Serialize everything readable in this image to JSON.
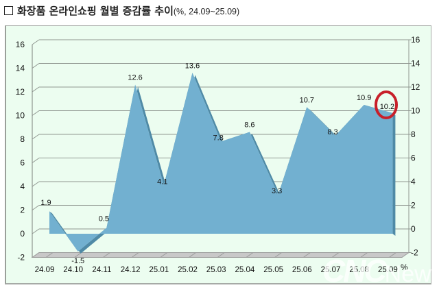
{
  "title": {
    "main": "화장품 온라인쇼핑 월별 증감률 추이",
    "sub": "(%, 24.09~25.09)"
  },
  "colors": {
    "area_fill": "#72b0d0",
    "area_edge": "#4f8aa6",
    "panel_bg": "#ecfdf0",
    "grid": "#8f9690",
    "floor": "#c8c8c8",
    "highlight_circle": "#c8202a"
  },
  "unit_label": "%",
  "watermark": {
    "main": "CNC",
    "suffix": "News"
  },
  "highlight": {
    "category": "25.09",
    "value": 10.2,
    "shape": "red-ellipse"
  },
  "chart_data": {
    "type": "area",
    "title": "화장품 온라인쇼핑 월별 증감률 추이 (%, 24.09~25.09)",
    "xlabel": "",
    "ylabel": "%",
    "categories": [
      "24.09",
      "24.10",
      "24.11",
      "24.12",
      "25.01",
      "25.02",
      "25.03",
      "25.04",
      "25.05",
      "25.06",
      "25.07",
      "25.08",
      "25.09"
    ],
    "values": [
      1.9,
      -1.5,
      0.5,
      12.6,
      4.1,
      13.6,
      7.8,
      8.6,
      3.3,
      10.7,
      8.3,
      10.9,
      10.2
    ],
    "data_labels": [
      "1.9",
      "-1.5",
      "0.5",
      "12.6",
      "4.1",
      "13.6",
      "7.8",
      "8.6",
      "3.3",
      "10.7",
      "8.3",
      "10.9",
      "10.2"
    ],
    "ylim": [
      -2,
      16
    ],
    "yticks": [
      -2,
      0,
      2,
      4,
      6,
      8,
      10,
      12,
      14,
      16
    ],
    "y2ticks": [
      -2,
      0,
      2,
      4,
      6,
      8,
      10,
      12,
      14,
      16
    ],
    "grid": true,
    "legend": null,
    "style": "3d-area"
  }
}
